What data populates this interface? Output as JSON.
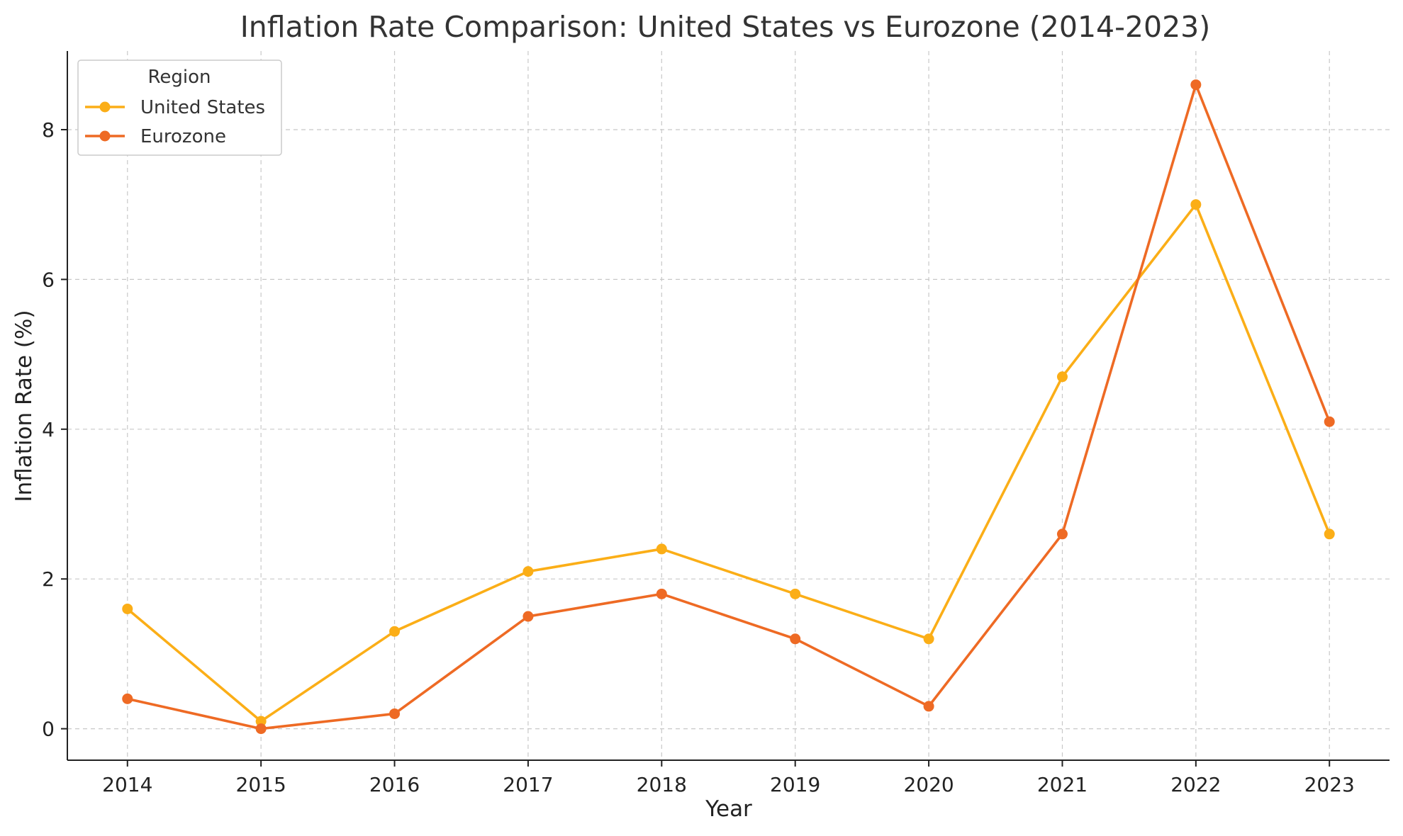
{
  "chart_data": {
    "type": "line",
    "title": "Inflation Rate Comparison: United States vs Eurozone (2014-2023)",
    "xlabel": "Year",
    "ylabel": "Inflation Rate (%)",
    "x": [
      2014,
      2015,
      2016,
      2017,
      2018,
      2019,
      2020,
      2021,
      2022,
      2023
    ],
    "x_tick_labels": [
      "2014",
      "2015",
      "2016",
      "2017",
      "2018",
      "2019",
      "2020",
      "2021",
      "2022",
      "2023"
    ],
    "y_ticks": [
      0,
      2,
      4,
      6,
      8
    ],
    "ylim": [
      -0.42,
      9.05
    ],
    "xlim": [
      2013.55,
      2023.45
    ],
    "grid": true,
    "legend": {
      "title": "Region",
      "placement": "top-left"
    },
    "series": [
      {
        "name": "United States",
        "color": "#FBAE17",
        "marker": "circle",
        "values": [
          1.6,
          0.1,
          1.3,
          2.1,
          2.4,
          1.8,
          1.2,
          4.7,
          7.0,
          2.6
        ]
      },
      {
        "name": "Eurozone",
        "color": "#EE6A24",
        "marker": "circle",
        "values": [
          0.4,
          0.0,
          0.2,
          1.5,
          1.8,
          1.2,
          0.3,
          2.6,
          8.6,
          4.1
        ]
      }
    ]
  }
}
